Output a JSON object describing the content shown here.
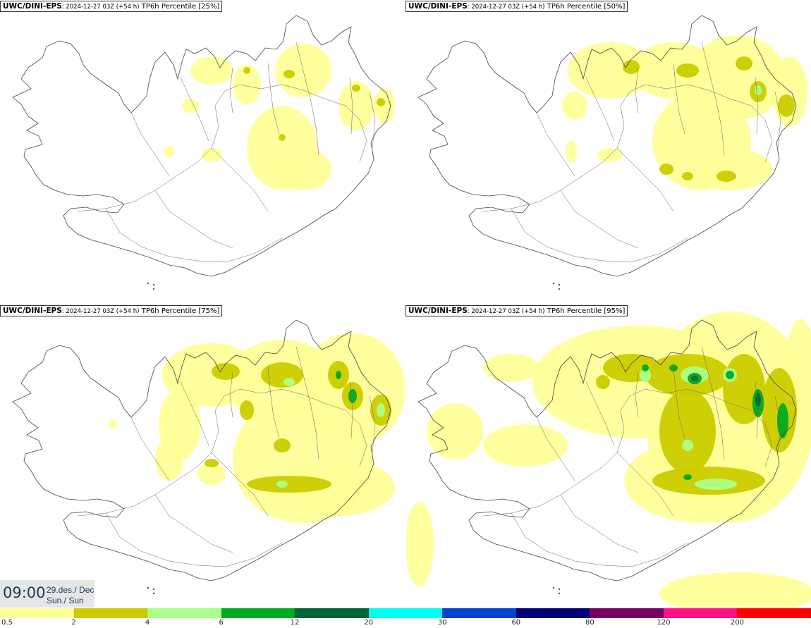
{
  "panels": [
    {
      "model": "UWC/DINI-EPS",
      "run": "2024-12-27 03Z (+54 h)",
      "field": "TP6h Percentile [25%]",
      "intensity": 1
    },
    {
      "model": "UWC/DINI-EPS",
      "run": "2024-12-27 03Z (+54 h)",
      "field": "TP6h Percentile [50%]",
      "intensity": 2
    },
    {
      "model": "UWC/DINI-EPS",
      "run": "2024-12-27 03Z (+54 h)",
      "field": "TP6h Percentile [75%]",
      "intensity": 3
    },
    {
      "model": "UWC/DINI-EPS",
      "run": "2024-12-27 03Z (+54 h)",
      "field": "TP6h Percentile [95%]",
      "intensity": 4
    }
  ],
  "valid_time": {
    "time": "09:00",
    "date_line1": "29.des./ Dec",
    "date_line2": "Sun./ Sun"
  },
  "legend": {
    "labels": [
      "0.5",
      "2",
      "4",
      "6",
      "12",
      "20",
      "30",
      "60",
      "80",
      "120",
      "200"
    ],
    "colors": [
      "#ffff99",
      "#cccc00",
      "#aaff88",
      "#00aa22",
      "#006633",
      "#00ffee",
      "#0044cc",
      "#000077",
      "#770066",
      "#ff1188",
      "#ff0000"
    ]
  }
}
